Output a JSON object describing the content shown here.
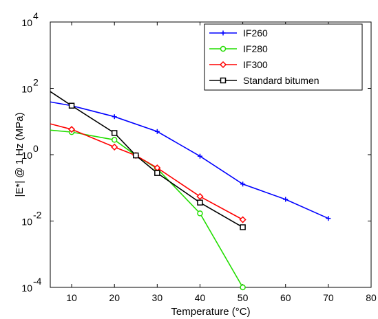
{
  "chart_data": {
    "type": "line",
    "title": "",
    "xlabel": "Temperature (°C)",
    "ylabel": "|E*| @ 1 Hz (MPa)",
    "xlim": [
      5,
      80
    ],
    "ylim": [
      0.0001,
      10000
    ],
    "yscale": "log",
    "grid": false,
    "legend_position": "top-right",
    "x_ticks": [
      10,
      20,
      30,
      40,
      50,
      60,
      70,
      80
    ],
    "x_tick_labels": [
      "10",
      "20",
      "30",
      "40",
      "50",
      "60",
      "70",
      "80"
    ],
    "y_ticks": [
      0.0001,
      0.01,
      1,
      100,
      10000
    ],
    "y_tick_labels": [
      {
        "base": "10",
        "exp": "-4"
      },
      {
        "base": "10",
        "exp": "-2"
      },
      {
        "base": "10",
        "exp": "0"
      },
      {
        "base": "10",
        "exp": "2"
      },
      {
        "base": "10",
        "exp": "4"
      }
    ],
    "series": [
      {
        "name": "IF260",
        "color": "#0000ff",
        "marker": "plus",
        "x": [
          5,
          10,
          20,
          30,
          40,
          50,
          60,
          70
        ],
        "y": [
          39,
          30,
          14,
          5,
          0.9,
          0.13,
          0.045,
          0.012
        ]
      },
      {
        "name": "IF280",
        "color": "#22dd00",
        "marker": "circle",
        "x": [
          5,
          10,
          20,
          25,
          30,
          40,
          50
        ],
        "y": [
          5.5,
          4.8,
          2.8,
          0.95,
          0.38,
          0.017,
          0.0001
        ]
      },
      {
        "name": "IF300",
        "color": "#ff0000",
        "marker": "diamond",
        "x": [
          5,
          10,
          20,
          25,
          30,
          40,
          50
        ],
        "y": [
          8.5,
          5.8,
          1.7,
          0.95,
          0.4,
          0.055,
          0.011
        ]
      },
      {
        "name": "Standard bitumen",
        "color": "#000000",
        "marker": "square",
        "x": [
          5,
          10,
          20,
          25,
          30,
          40,
          50
        ],
        "y": [
          80,
          30,
          4.5,
          0.95,
          0.28,
          0.036,
          0.0065
        ]
      }
    ]
  }
}
